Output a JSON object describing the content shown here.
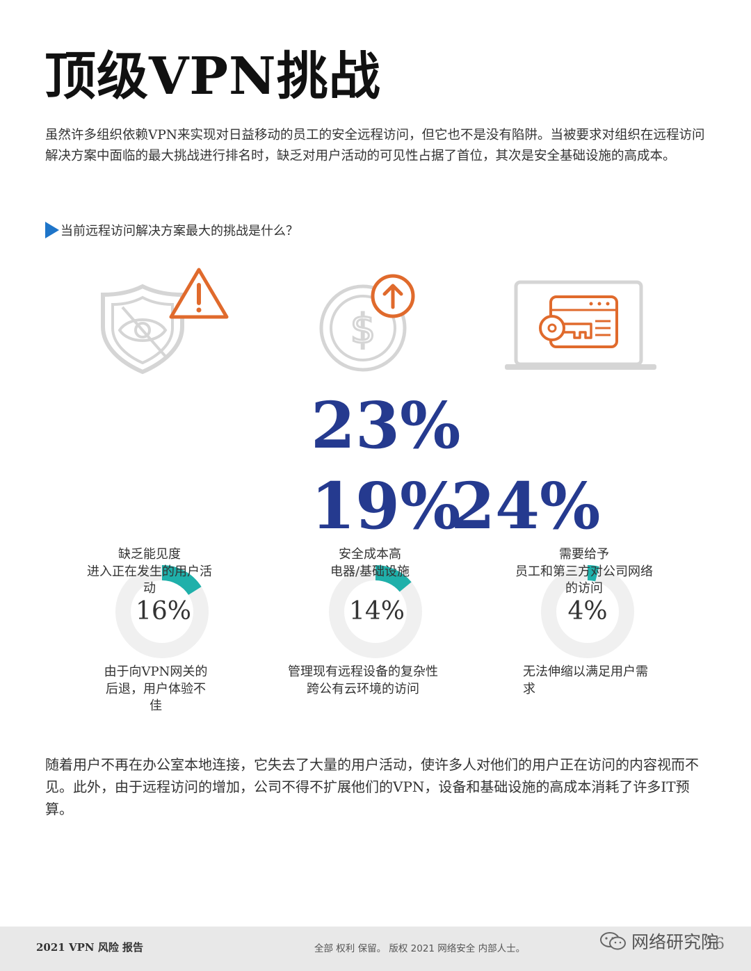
{
  "page": {
    "title": "顶级VPN挑战",
    "intro": "虽然许多组织依赖VPN来实现对日益移动的员工的安全远程访问，但它也不是没有陷阱。当被要求对组织在远程访问解决方案中面临的最大挑战进行排名时，缺乏对用户活动的可见性占据了首位，其次是安全基础设施的高成本。",
    "question": "当前远程访问解决方案最大的挑战是什么？",
    "outro": "随着用户不再在办公室本地连接，它失去了大量的用户活动，使许多人对他们的用户正在访问的内容视而不见。此外，由于远程访问的增加，公司不得不扩展他们的VPN，设备和基础设施的高成本消耗了许多IT预算。"
  },
  "icons": [
    "shield-eye-slash-icon",
    "warning-triangle-icon",
    "dollar-coin-icon",
    "arrow-up-circle-icon",
    "laptop-key-icon"
  ],
  "big_stats": {
    "top": "23%",
    "bottom_left": "19%",
    "bottom_right": "24%"
  },
  "items": [
    {
      "top_label": "缺乏能见度\n进入正在发生的用户活\n动",
      "pct": "16%",
      "value": 16,
      "bottom_label": "由于向VPN网关的\n后退，用户体验不\n佳"
    },
    {
      "top_label": "安全成本高\n电器/基础设施",
      "pct": "14%",
      "value": 14,
      "bottom_label": "管理现有远程设备的复杂性\n跨公有云环境的访问"
    },
    {
      "top_label": "需要给予\n员工和第三方对公司网络\n的访问",
      "pct": "4%",
      "value": 4,
      "bottom_label": "无法伸缩以满足用户需\n求"
    }
  ],
  "colors": {
    "accent_teal": "#1fb0aa",
    "stat_blue": "#253a8f",
    "icon_orange": "#e06a2c",
    "triangle_blue": "#1e75c9"
  },
  "footer": {
    "left": "2021 VPN 风险 报告",
    "middle": "全部 权利 保留。 版权 2021 网络安全 内部人士。",
    "watermark": "网络研究院",
    "page_number": "16"
  }
}
